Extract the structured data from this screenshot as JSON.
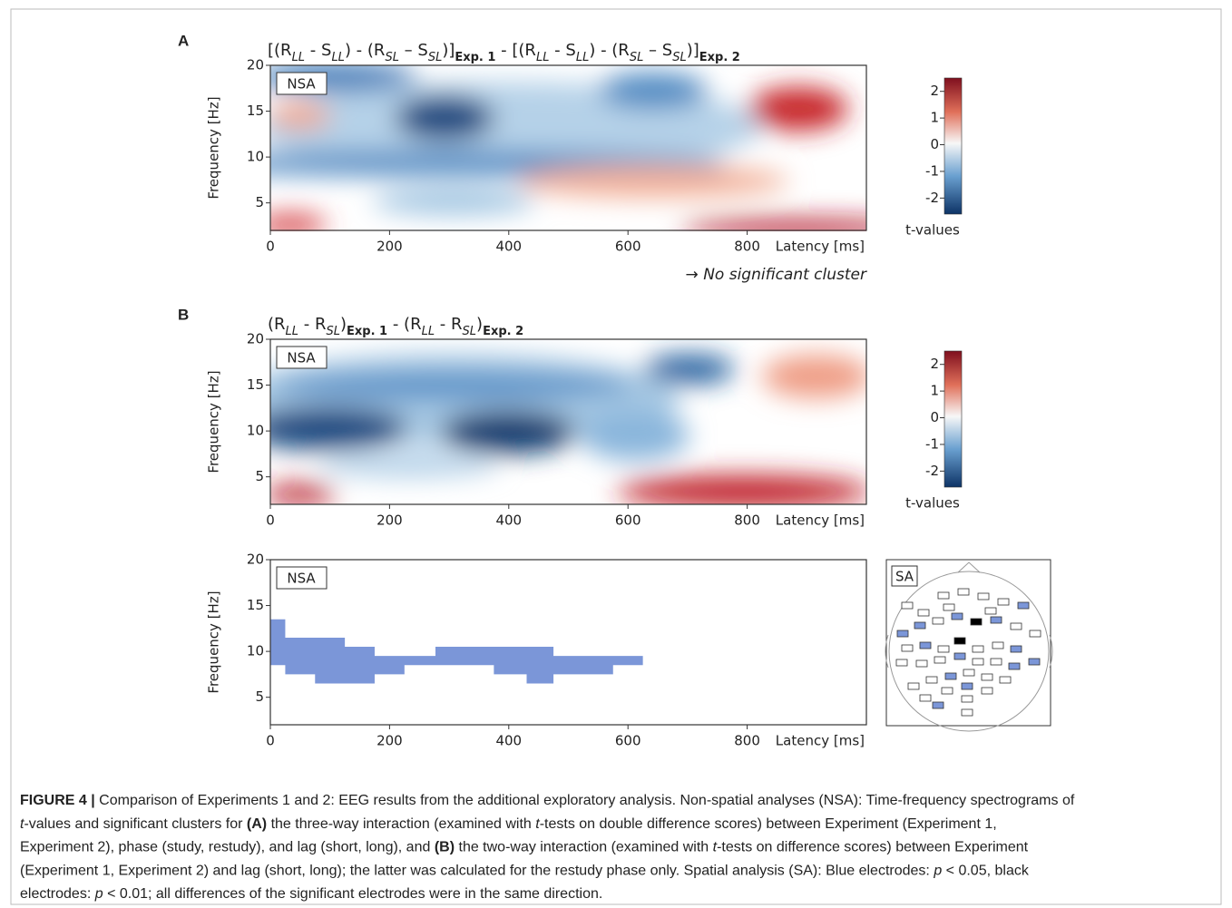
{
  "chart_data": [
    {
      "type": "heatmap",
      "panel": "A",
      "title": [
        "[(R",
        {
          "text": "LL",
          "style": "sub-italic"
        },
        " - S",
        {
          "text": "LL",
          "style": "sub-italic"
        },
        ") - (R",
        {
          "text": "SL",
          "style": "sub-italic"
        },
        " – S",
        {
          "text": "SL",
          "style": "sub-italic"
        },
        ")]",
        {
          "text": "Exp. 1",
          "style": "sub-bold"
        },
        " - [(R",
        {
          "text": "LL",
          "style": "sub-italic"
        },
        " - S",
        {
          "text": "LL",
          "style": "sub-italic"
        },
        ") - (R",
        {
          "text": "SL",
          "style": "sub-italic"
        },
        " – S",
        {
          "text": "SL",
          "style": "sub-italic"
        },
        ")]",
        {
          "text": "Exp. 2",
          "style": "sub-bold"
        }
      ],
      "label": "NSA",
      "xlabel": "Latency [ms]",
      "ylabel": "Frequency [Hz]",
      "xlim": [
        0,
        1000
      ],
      "xticks": [
        0,
        200,
        400,
        600,
        800
      ],
      "ylim": [
        2,
        20
      ],
      "yticks": [
        5,
        10,
        15,
        20
      ],
      "colorbar": {
        "label": "t-values",
        "lim": [
          -2.6,
          2.5
        ],
        "ticks": [
          -2,
          -1,
          0,
          1,
          2
        ]
      },
      "note": "→ No significant cluster"
    },
    {
      "type": "heatmap",
      "panel": "B",
      "title": [
        "(R",
        {
          "text": "LL",
          "style": "sub-italic"
        },
        " - R",
        {
          "text": "SL",
          "style": "sub-italic"
        },
        ")",
        {
          "text": "Exp. 1",
          "style": "sub-bold"
        },
        " - (R",
        {
          "text": "LL",
          "style": "sub-italic"
        },
        " - R",
        {
          "text": "SL",
          "style": "sub-italic"
        },
        ")",
        {
          "text": "Exp. 2",
          "style": "sub-bold"
        }
      ],
      "label": "NSA",
      "xlabel": "Latency [ms]",
      "ylabel": "Frequency [Hz]",
      "xlim": [
        0,
        1000
      ],
      "xticks": [
        0,
        200,
        400,
        600,
        800
      ],
      "ylim": [
        2,
        20
      ],
      "yticks": [
        5,
        10,
        15,
        20
      ],
      "colorbar": {
        "label": "t-values",
        "lim": [
          -2.6,
          2.5
        ],
        "ticks": [
          -2,
          -1,
          0,
          1,
          2
        ]
      }
    },
    {
      "type": "cluster",
      "label": "NSA",
      "xlabel": "Latency [ms]",
      "ylabel": "Frequency [Hz]",
      "xlim": [
        0,
        1000
      ],
      "xticks": [
        0,
        200,
        400,
        600,
        800
      ],
      "ylim": [
        2,
        20
      ],
      "yticks": [
        5,
        10,
        15,
        20
      ],
      "color": "#7b96d8",
      "sa_label": "SA"
    }
  ],
  "caption": [
    [
      {
        "text": "FIGURE 4 | ",
        "bold": true
      },
      "Comparison of Experiments 1 and 2: EEG results from the additional exploratory analysis. Non-spatial analyses (NSA): Time-frequency spectrograms of"
    ],
    [
      {
        "text": "t",
        "italic": true
      },
      "-values and significant clusters for ",
      {
        "text": "(A)",
        "bold": true
      },
      " the three-way interaction (examined with ",
      {
        "text": "t",
        "italic": true
      },
      "-tests on double difference scores) between Experiment (Experiment 1,"
    ],
    [
      "Experiment 2), phase (study, restudy), and lag (short, long), and ",
      {
        "text": "(B)",
        "bold": true
      },
      " the two-way interaction (examined with ",
      {
        "text": "t",
        "italic": true
      },
      "-tests on difference scores) between Experiment"
    ],
    [
      "(Experiment 1, Experiment 2) and lag (short, long); the latter was calculated for the restudy phase only. Spatial analysis (SA): Blue electrodes: ",
      {
        "text": "p",
        "italic": true
      },
      " < 0.05, black"
    ],
    [
      "electrodes: ",
      {
        "text": "p",
        "italic": true
      },
      " < 0.01; all differences of the significant electrodes were in the same direction."
    ]
  ]
}
